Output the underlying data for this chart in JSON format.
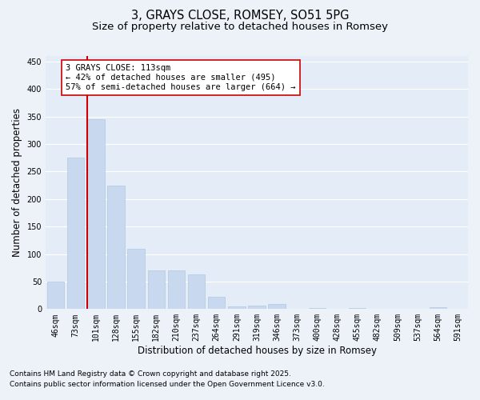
{
  "title": "3, GRAYS CLOSE, ROMSEY, SO51 5PG",
  "subtitle": "Size of property relative to detached houses in Romsey",
  "xlabel": "Distribution of detached houses by size in Romsey",
  "ylabel": "Number of detached properties",
  "categories": [
    "46sqm",
    "73sqm",
    "101sqm",
    "128sqm",
    "155sqm",
    "182sqm",
    "210sqm",
    "237sqm",
    "264sqm",
    "291sqm",
    "319sqm",
    "346sqm",
    "373sqm",
    "400sqm",
    "428sqm",
    "455sqm",
    "482sqm",
    "509sqm",
    "537sqm",
    "564sqm",
    "591sqm"
  ],
  "values": [
    50,
    275,
    345,
    225,
    110,
    70,
    70,
    63,
    22,
    5,
    7,
    9,
    0,
    2,
    0,
    2,
    0,
    0,
    0,
    3,
    0
  ],
  "bar_color": "#c8d9ef",
  "bar_edge_color": "#b0c8e0",
  "vline_x_index": 2,
  "vline_color": "#cc0000",
  "annotation_title": "3 GRAYS CLOSE: 113sqm",
  "annotation_line1": "← 42% of detached houses are smaller (495)",
  "annotation_line2": "57% of semi-detached houses are larger (664) →",
  "annotation_box_color": "#ffffff",
  "annotation_box_edge": "#cc0000",
  "ylim": [
    0,
    460
  ],
  "yticks": [
    0,
    50,
    100,
    150,
    200,
    250,
    300,
    350,
    400,
    450
  ],
  "bg_color": "#edf2f9",
  "plot_bg_color": "#e4ecf7",
  "grid_color": "#ffffff",
  "footer1": "Contains HM Land Registry data © Crown copyright and database right 2025.",
  "footer2": "Contains public sector information licensed under the Open Government Licence v3.0.",
  "title_fontsize": 10.5,
  "subtitle_fontsize": 9.5,
  "axis_label_fontsize": 8.5,
  "tick_fontsize": 7,
  "annotation_fontsize": 7.5,
  "footer_fontsize": 6.5
}
